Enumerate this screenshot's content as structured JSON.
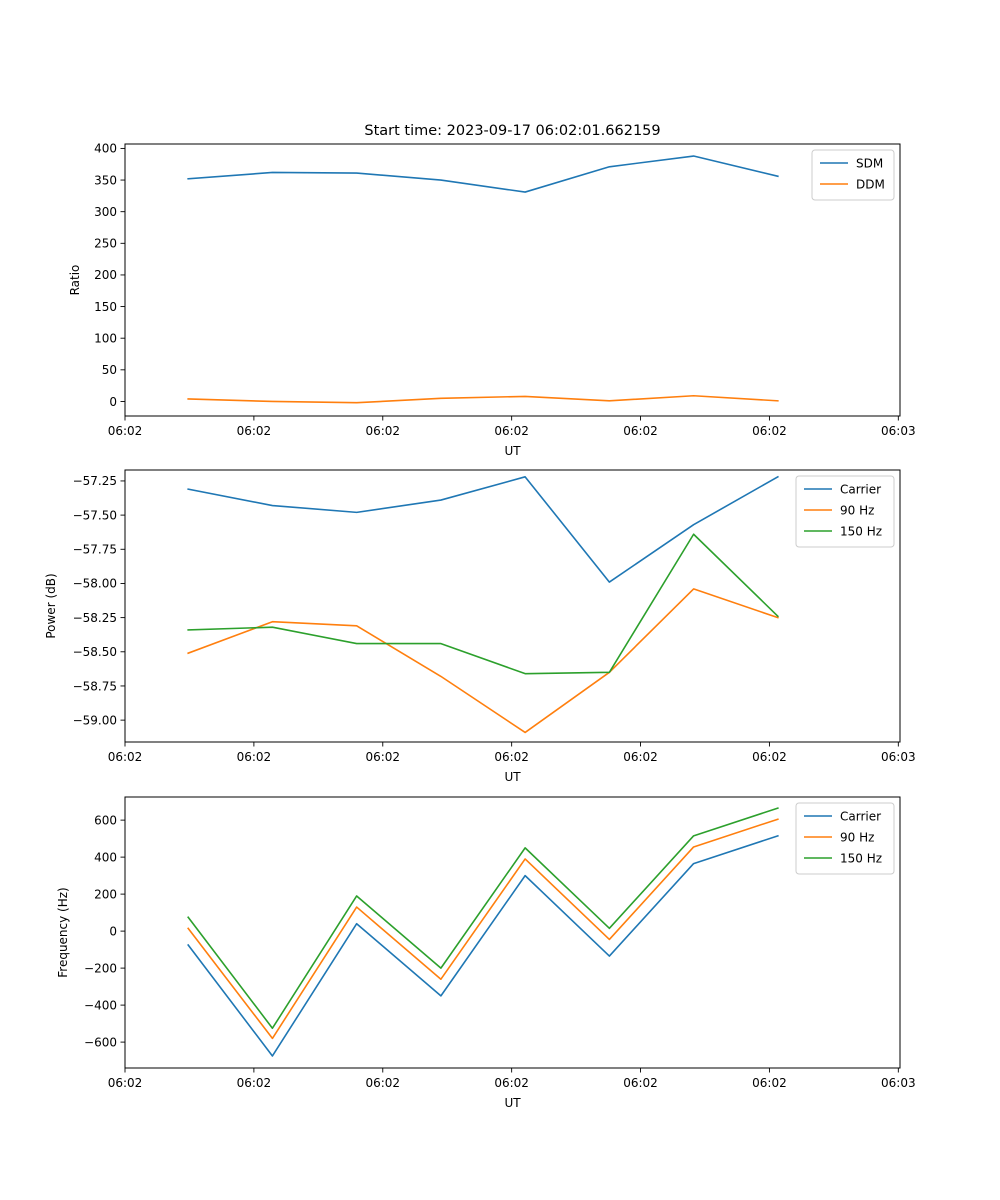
{
  "chart_data": [
    {
      "type": "line",
      "title": "Start time: 2023-09-17 06:02:01.662159",
      "xlabel": "UT",
      "ylabel": "Ratio",
      "x": [
        0,
        1,
        2,
        3,
        4,
        5,
        6,
        7
      ],
      "xlim": [
        -0.75,
        8.45
      ],
      "xtick_positions": [
        -0.75,
        0.78,
        2.31,
        3.84,
        5.37,
        6.9,
        8.43
      ],
      "xtick_labels": [
        "06:02",
        "06:02",
        "06:02",
        "06:02",
        "06:02",
        "06:02",
        "06:03"
      ],
      "ylim": [
        -23,
        407
      ],
      "yticks": [
        0,
        50,
        100,
        150,
        200,
        250,
        300,
        350,
        400
      ],
      "ytick_labels": [
        "0",
        "50",
        "100",
        "150",
        "200",
        "250",
        "300",
        "350",
        "400"
      ],
      "legend_position": "top-right",
      "series": [
        {
          "name": "SDM",
          "color": "#1f77b4",
          "values": [
            352,
            362,
            361,
            350,
            331,
            371,
            388,
            356
          ]
        },
        {
          "name": "DDM",
          "color": "#ff7f0e",
          "values": [
            4,
            0,
            -2,
            5,
            8,
            1,
            9,
            1
          ]
        }
      ]
    },
    {
      "type": "line",
      "title": "",
      "xlabel": "UT",
      "ylabel": "Power (dB)",
      "x": [
        0,
        1,
        2,
        3,
        4,
        5,
        6,
        7
      ],
      "xlim": [
        -0.75,
        8.45
      ],
      "xtick_positions": [
        -0.75,
        0.78,
        2.31,
        3.84,
        5.37,
        6.9,
        8.43
      ],
      "xtick_labels": [
        "06:02",
        "06:02",
        "06:02",
        "06:02",
        "06:02",
        "06:02",
        "06:03"
      ],
      "ylim": [
        -59.16,
        -57.17
      ],
      "yticks": [
        -59.0,
        -58.75,
        -58.5,
        -58.25,
        -58.0,
        -57.75,
        -57.5,
        -57.25
      ],
      "ytick_labels": [
        "−59.00",
        "−58.75",
        "−58.50",
        "−58.25",
        "−58.00",
        "−57.75",
        "−57.50",
        "−57.25"
      ],
      "legend_position": "top-right",
      "series": [
        {
          "name": "Carrier",
          "color": "#1f77b4",
          "values": [
            -57.31,
            -57.43,
            -57.48,
            -57.39,
            -57.22,
            -57.99,
            -57.57,
            -57.22
          ]
        },
        {
          "name": "90 Hz",
          "color": "#ff7f0e",
          "values": [
            -58.51,
            -58.28,
            -58.31,
            -58.68,
            -59.09,
            -58.65,
            -58.04,
            -58.25
          ]
        },
        {
          "name": "150 Hz",
          "color": "#2ca02c",
          "values": [
            -58.34,
            -58.32,
            -58.44,
            -58.44,
            -58.66,
            -58.65,
            -57.64,
            -58.24
          ]
        }
      ]
    },
    {
      "type": "line",
      "title": "",
      "xlabel": "UT",
      "ylabel": "Frequency (Hz)",
      "x": [
        0,
        1,
        2,
        3,
        4,
        5,
        6,
        7
      ],
      "xlim": [
        -0.75,
        8.45
      ],
      "xtick_positions": [
        -0.75,
        0.78,
        2.31,
        3.84,
        5.37,
        6.9,
        8.43
      ],
      "xtick_labels": [
        "06:02",
        "06:02",
        "06:02",
        "06:02",
        "06:02",
        "06:02",
        "06:03"
      ],
      "ylim": [
        -740,
        725
      ],
      "yticks": [
        -600,
        -400,
        -200,
        0,
        200,
        400,
        600
      ],
      "ytick_labels": [
        "−600",
        "−400",
        "−200",
        "0",
        "200",
        "400",
        "600"
      ],
      "legend_position": "top-right",
      "series": [
        {
          "name": "Carrier",
          "color": "#1f77b4",
          "values": [
            -75,
            -675,
            40,
            -350,
            300,
            -135,
            365,
            515
          ]
        },
        {
          "name": "90 Hz",
          "color": "#ff7f0e",
          "values": [
            15,
            -580,
            130,
            -260,
            390,
            -45,
            455,
            605
          ]
        },
        {
          "name": "150 Hz",
          "color": "#2ca02c",
          "values": [
            75,
            -525,
            190,
            -200,
            450,
            15,
            515,
            665
          ]
        }
      ]
    }
  ]
}
